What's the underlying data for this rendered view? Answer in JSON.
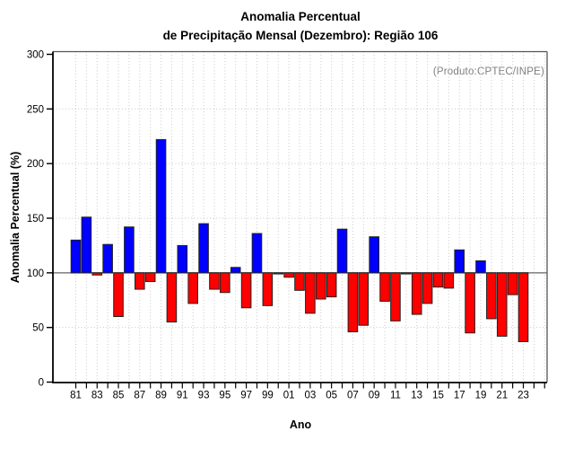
{
  "title": {
    "line1": "Anomalia Percentual",
    "line2": "de Precipitação Mensal (Dezembro): Região 106"
  },
  "annotation": "(Produto:CPTEC/INPE)",
  "chart_data": {
    "type": "bar",
    "title": "Anomalia Percentual de Precipitação Mensal (Dezembro): Região 106",
    "xlabel": "Ano",
    "ylabel": "Anomalia Percentual (%)",
    "ylim": [
      0,
      300
    ],
    "yticks": [
      0,
      50,
      100,
      150,
      200,
      250,
      300
    ],
    "baseline": 100,
    "grid": "dotted vertical line per year; dotted horizontal lines at 50/150/200/250; solid gray line at 100",
    "legend_position": "none",
    "x_tick_label_step": 2,
    "categories": [
      "81",
      "82",
      "83",
      "84",
      "85",
      "86",
      "87",
      "88",
      "89",
      "90",
      "91",
      "92",
      "93",
      "94",
      "95",
      "96",
      "97",
      "98",
      "99",
      "00",
      "01",
      "02",
      "03",
      "04",
      "05",
      "06",
      "07",
      "08",
      "09",
      "10",
      "11",
      "12",
      "13",
      "14",
      "15",
      "16",
      "17",
      "18",
      "19",
      "20",
      "21",
      "22",
      "23"
    ],
    "values": [
      130,
      151,
      98,
      126,
      60,
      142,
      85,
      92,
      222,
      55,
      125,
      72,
      145,
      85,
      82,
      105,
      68,
      136,
      70,
      99,
      96,
      84,
      63,
      76,
      78,
      140,
      46,
      52,
      133,
      74,
      56,
      99,
      62,
      72,
      87,
      86,
      121,
      45,
      111,
      58,
      42,
      80,
      37
    ],
    "colors": {
      "above_baseline": "#0000ff",
      "below_baseline": "#ff0000",
      "bar_stroke": "#222222",
      "baseline_line": "#888888",
      "gridline": "#c9c9c9",
      "axis": "#000000",
      "box_border": "#555555",
      "annotation_text": "#7f7f7f"
    }
  }
}
